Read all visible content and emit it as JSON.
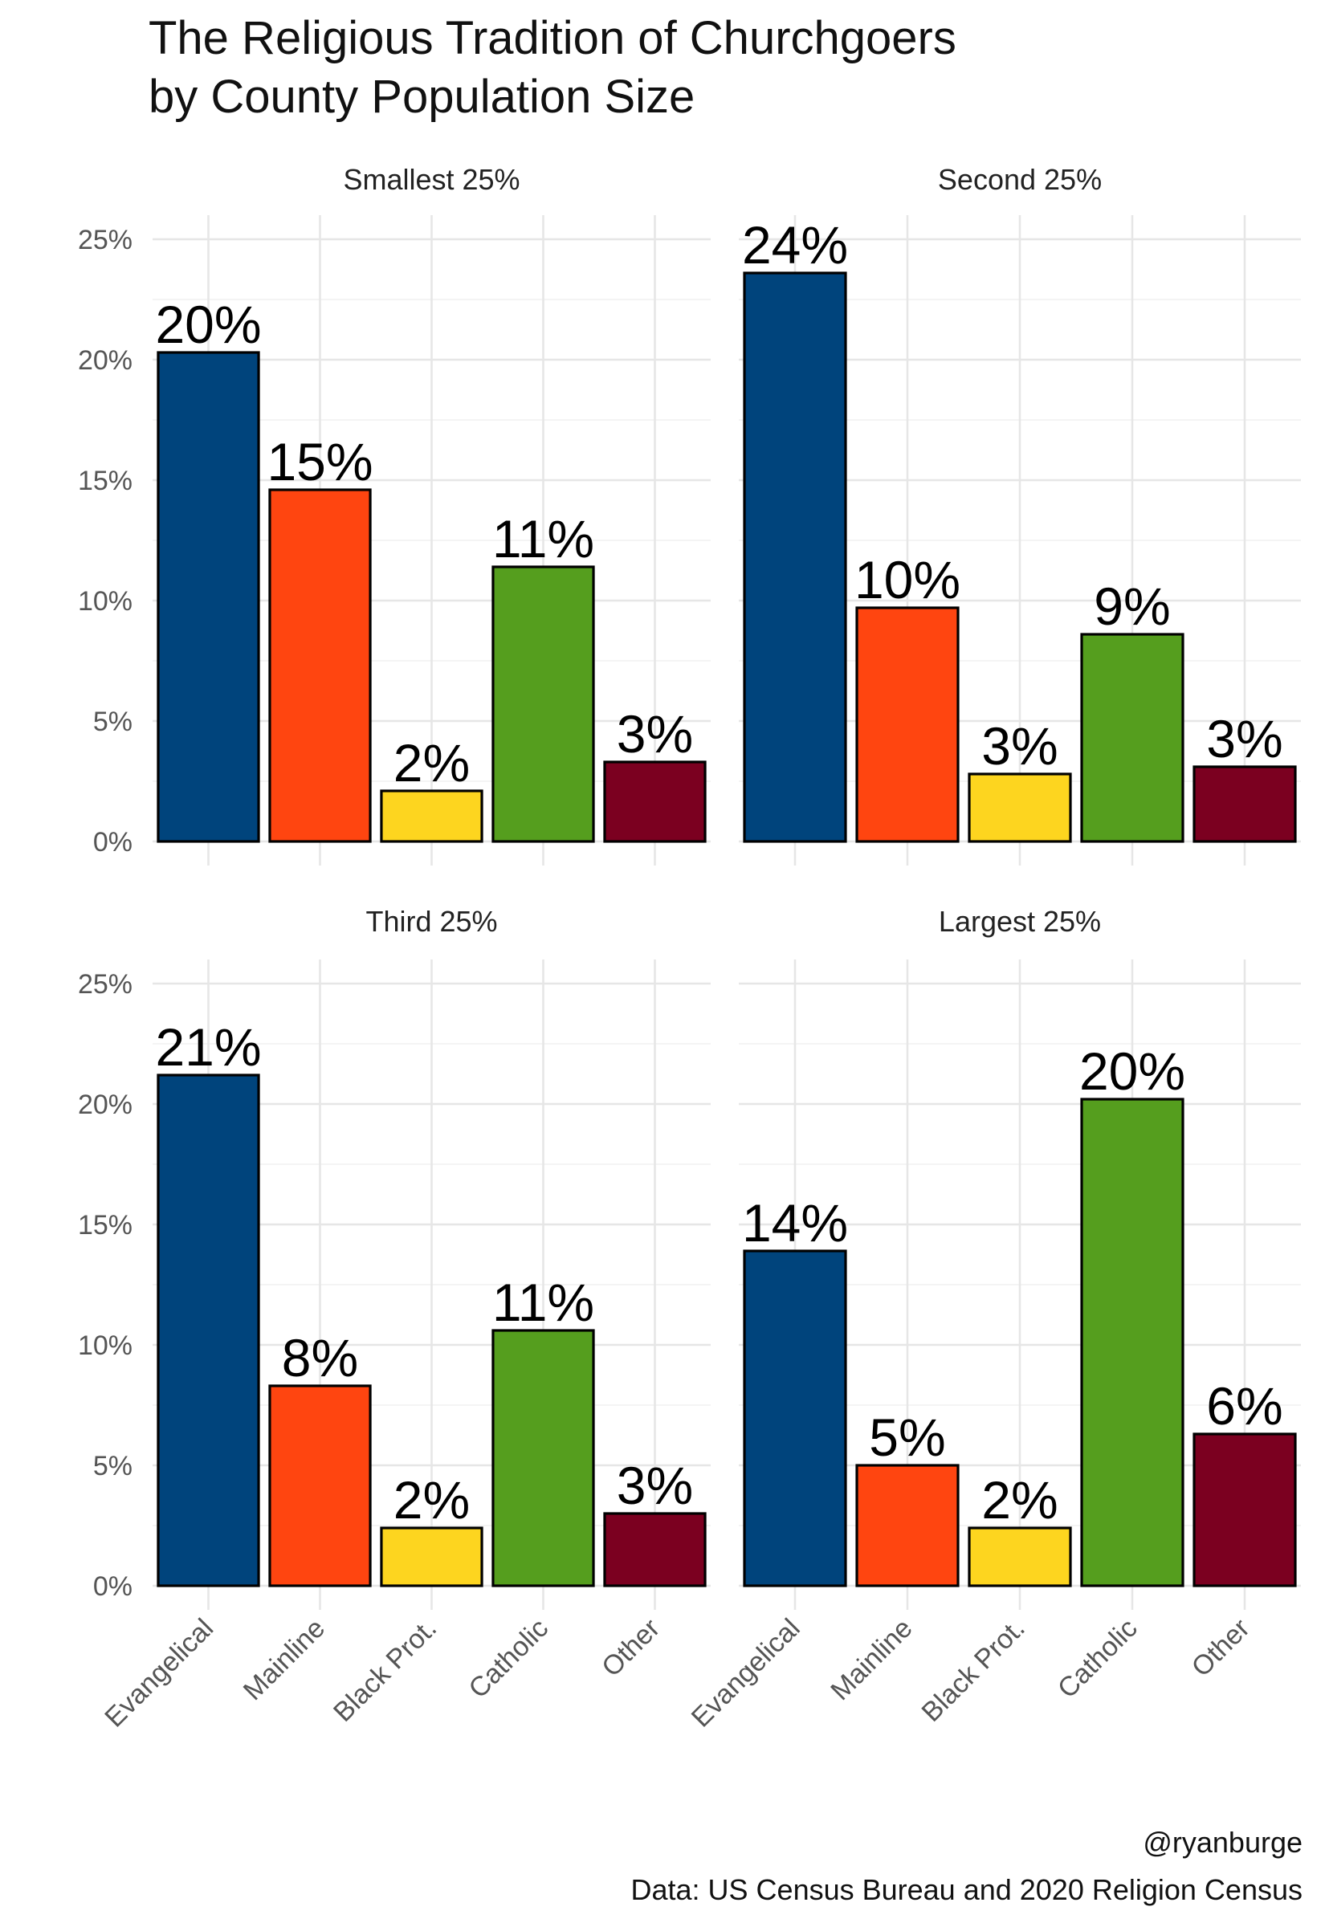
{
  "chart_data": {
    "type": "bar",
    "title": "The Religious Tradition of Churchgoers\nby County Population Size",
    "xlabel": "",
    "ylabel": "",
    "categories": [
      "Evangelical",
      "Mainline",
      "Black Prot.",
      "Catholic",
      "Other"
    ],
    "colors": [
      "#00447c",
      "#ff4510",
      "#fdd51f",
      "#559e1e",
      "#7b0020"
    ],
    "ylim": [
      0,
      0.26
    ],
    "yticks": [
      0,
      0.05,
      0.1,
      0.15,
      0.2,
      0.25
    ],
    "ytick_labels": [
      "0%",
      "5%",
      "10%",
      "15%",
      "20%",
      "25%"
    ],
    "grid": true,
    "legend": "none",
    "facets": [
      {
        "name": "Smallest 25%",
        "values": [
          0.203,
          0.146,
          0.021,
          0.114,
          0.033
        ],
        "labels": [
          "20%",
          "15%",
          "2%",
          "11%",
          "3%"
        ]
      },
      {
        "name": "Second 25%",
        "values": [
          0.236,
          0.097,
          0.028,
          0.086,
          0.031
        ],
        "labels": [
          "24%",
          "10%",
          "3%",
          "9%",
          "3%"
        ]
      },
      {
        "name": "Third 25%",
        "values": [
          0.212,
          0.083,
          0.024,
          0.106,
          0.03
        ],
        "labels": [
          "21%",
          "8%",
          "2%",
          "11%",
          "3%"
        ]
      },
      {
        "name": "Largest 25%",
        "values": [
          0.139,
          0.05,
          0.024,
          0.202,
          0.063
        ],
        "labels": [
          "14%",
          "5%",
          "2%",
          "20%",
          "6%"
        ]
      }
    ],
    "caption": [
      "@ryanburge",
      "Data: US Census Bureau and 2020 Religion Census"
    ]
  }
}
